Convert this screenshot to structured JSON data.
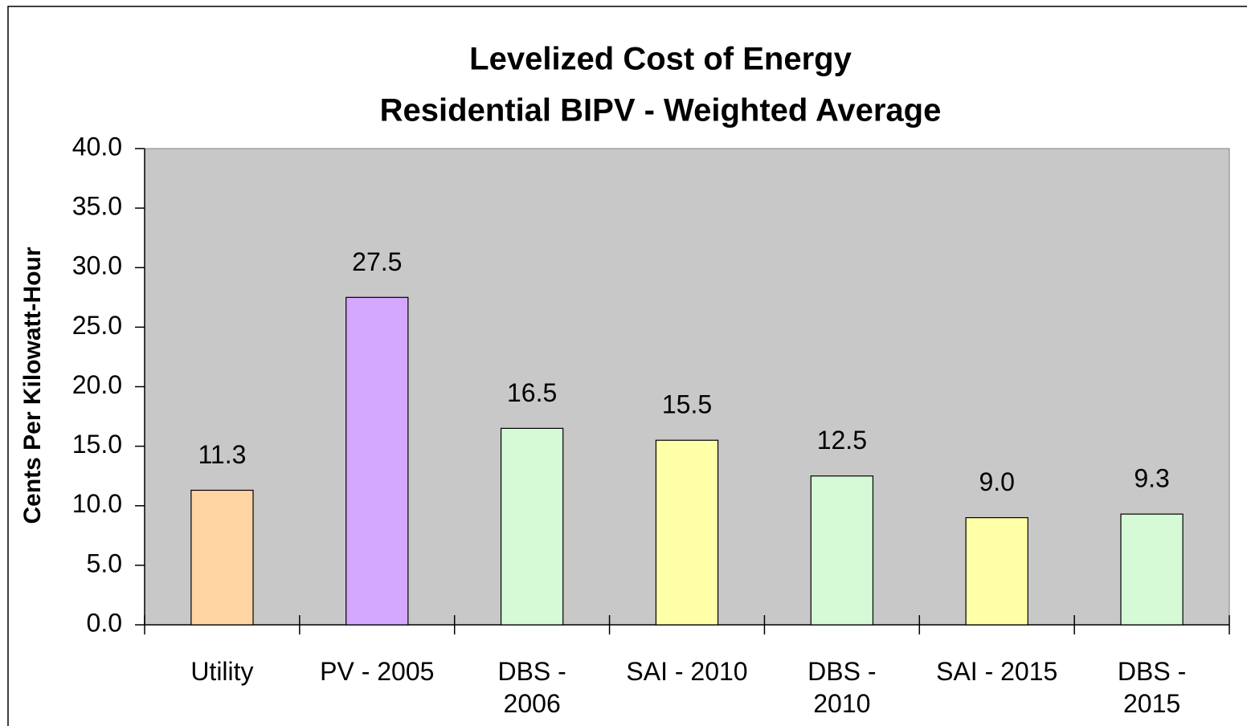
{
  "chart_data": {
    "type": "bar",
    "title": "Levelized Cost of Energy",
    "subtitle": "Residential BIPV - Weighted Average",
    "y_label": "Cents Per Kilowatt-Hour",
    "categories": [
      "Utility",
      "PV - 2005",
      "DBS - 2006",
      "SAI - 2010",
      "DBS - 2010",
      "SAI - 2015",
      "DBS - 2015"
    ],
    "values": [
      11.3,
      27.5,
      16.5,
      15.5,
      12.5,
      9,
      9.3
    ],
    "value_labels": [
      "11.3",
      "27.5",
      "16.5",
      "15.5",
      "12.5",
      "9.0",
      "9.3"
    ],
    "colors": [
      "#ffd5a3",
      "#d5a8ff",
      "#d5fad5",
      "#ffffa8",
      "#d5fad5",
      "#ffffa8",
      "#d5fad5"
    ],
    "ylim": [
      0,
      40
    ],
    "yticks": [
      {
        "value": 0,
        "label": "0.0"
      },
      {
        "value": 5,
        "label": "5.0"
      },
      {
        "value": 10,
        "label": "10.0"
      },
      {
        "value": 15,
        "label": "15.0"
      },
      {
        "value": 20,
        "label": "20.0"
      },
      {
        "value": 25,
        "label": "25.0"
      },
      {
        "value": 30,
        "label": "30.0"
      },
      {
        "value": 35,
        "label": "35.0"
      },
      {
        "value": 40,
        "label": "40.0"
      }
    ],
    "grid": false
  }
}
